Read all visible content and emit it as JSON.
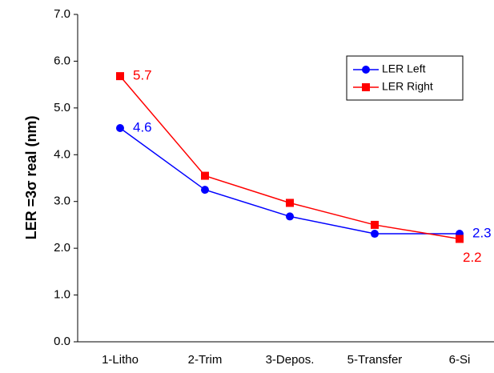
{
  "chart_data": {
    "type": "line",
    "y_label": "LER =3σ real (nm)",
    "categories": [
      "1-Litho",
      "2-Trim",
      "3-Depos.",
      "5-Transfer",
      "6-Si"
    ],
    "series": [
      {
        "name": "LER Left",
        "color": "#0000ff",
        "marker": "circle",
        "values": [
          4.57,
          3.25,
          2.68,
          2.31,
          2.31
        ],
        "value_labels": [
          "4.6",
          null,
          null,
          null,
          "2.3"
        ]
      },
      {
        "name": "LER Right",
        "color": "#ff0000",
        "marker": "square",
        "values": [
          5.68,
          3.55,
          2.97,
          2.5,
          2.2
        ],
        "value_labels": [
          "5.7",
          null,
          null,
          null,
          "2.2"
        ]
      }
    ],
    "ylim": [
      0,
      7
    ],
    "yticks": [
      {
        "value": 0,
        "label": "0.0"
      },
      {
        "value": 1,
        "label": "1.0"
      },
      {
        "value": 2,
        "label": "2.0"
      },
      {
        "value": 3,
        "label": "3.0"
      },
      {
        "value": 4,
        "label": "4.0"
      },
      {
        "value": 5,
        "label": "5.0"
      },
      {
        "value": 6,
        "label": "6.0"
      },
      {
        "value": 7,
        "label": "7.0"
      }
    ],
    "grid": false,
    "legend": "upper right"
  }
}
